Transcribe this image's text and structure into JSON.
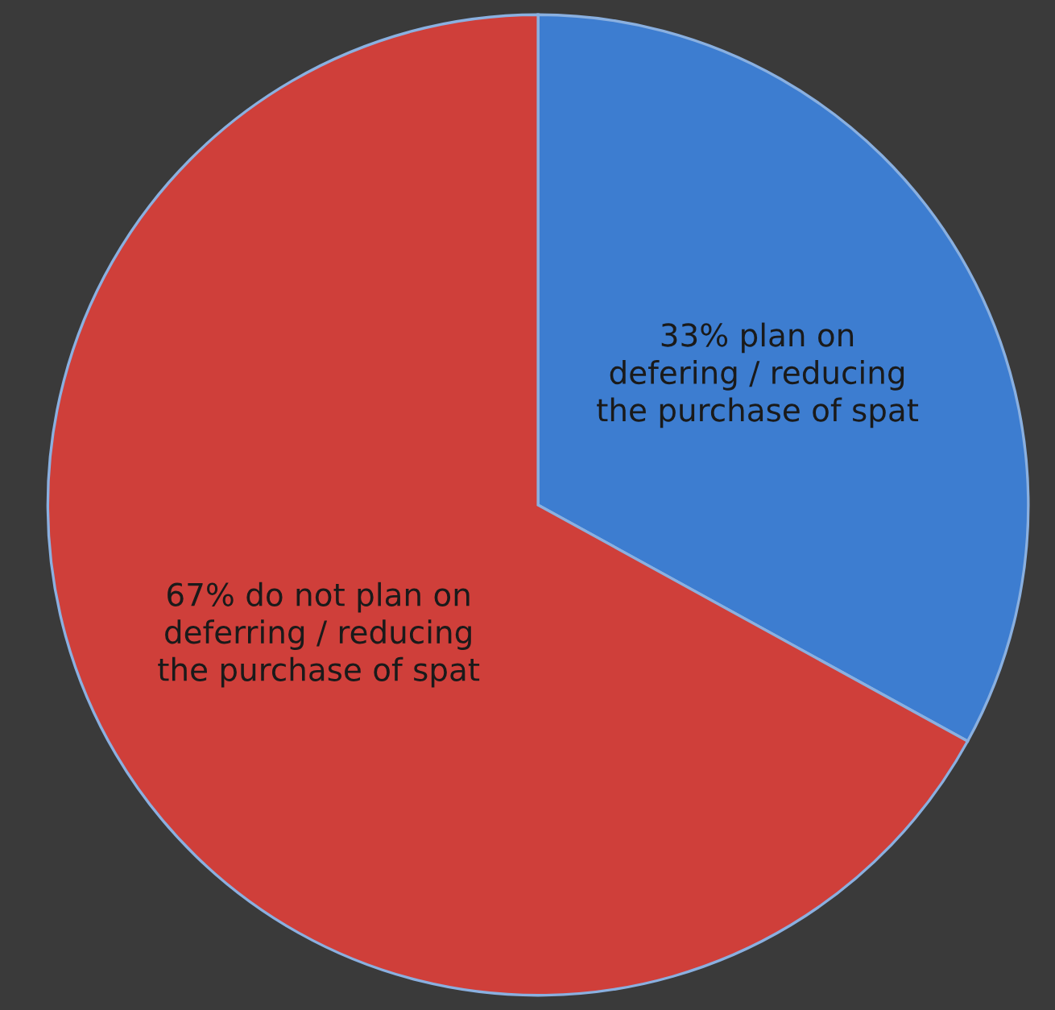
{
  "chart_data": {
    "type": "pie",
    "categories": [
      "33% plan on\ndefering / reducing\nthe purchase of spat",
      "67% do not plan on\ndeferring / reducing\nthe purchase of spat"
    ],
    "values": [
      33,
      67
    ],
    "colors": [
      "#3d7dd0",
      "#cf3f3a"
    ],
    "legend": false
  }
}
